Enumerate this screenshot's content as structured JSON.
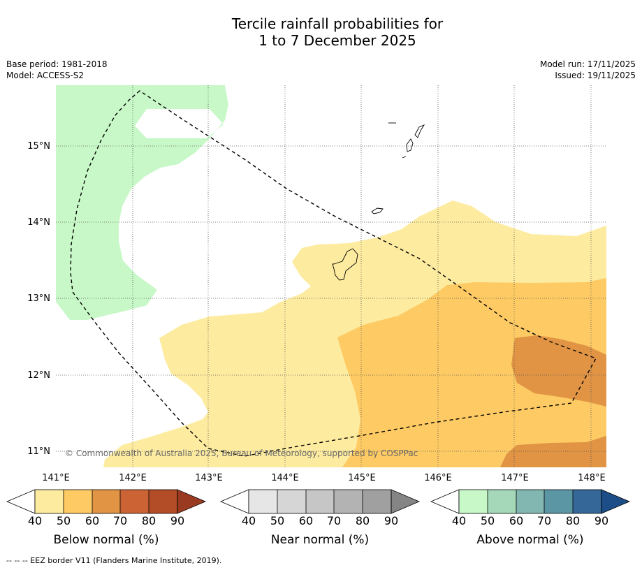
{
  "title": {
    "line1": "Tercile rainfall probabilities for",
    "line2": "1 to 7 December 2025"
  },
  "meta_left": {
    "base_period": "Base period: 1981-2018",
    "model": "Model: ACCESS-S2"
  },
  "meta_right": {
    "model_run": "Model run: 17/11/2025",
    "issued": "Issued: 19/11/2025"
  },
  "map": {
    "lon_ticks": [
      "141°E",
      "142°E",
      "143°E",
      "144°E",
      "145°E",
      "146°E",
      "147°E",
      "148°E"
    ],
    "lat_ticks": [
      "15°N",
      "14°N",
      "13°N",
      "12°N",
      "11°N"
    ],
    "copyright": "© Commonwealth of Australia 2025, Bureau of Meteorology, supported by COSPPac"
  },
  "colorbars": {
    "below": {
      "title": "Below normal (%)",
      "labels": [
        "40",
        "50",
        "60",
        "70",
        "80",
        "90"
      ],
      "colors": [
        "#fdeba0",
        "#fdca64",
        "#e09444",
        "#cc6334",
        "#b34d27",
        "#9a3a20"
      ]
    },
    "near": {
      "title": "Near normal (%)",
      "labels": [
        "40",
        "50",
        "60",
        "70",
        "80",
        "90"
      ],
      "colors": [
        "#e6e6e6",
        "#d6d6d6",
        "#c6c6c6",
        "#b3b3b3",
        "#a0a0a0",
        "#858585"
      ]
    },
    "above": {
      "title": "Above normal (%)",
      "labels": [
        "40",
        "50",
        "60",
        "70",
        "80",
        "90"
      ],
      "colors": [
        "#c8f8c8",
        "#a4d8b8",
        "#82b6b0",
        "#5a96a4",
        "#356898",
        "#1d4e88"
      ]
    }
  },
  "map_colors": {
    "above_40_50": "#c8f8c8",
    "below_40_50": "#fdeba0",
    "below_50_60": "#fdca64",
    "below_60_70": "#e09444"
  },
  "footer": "--  --  -- EEZ border V11 (Flanders Marine Institute, 2019)."
}
